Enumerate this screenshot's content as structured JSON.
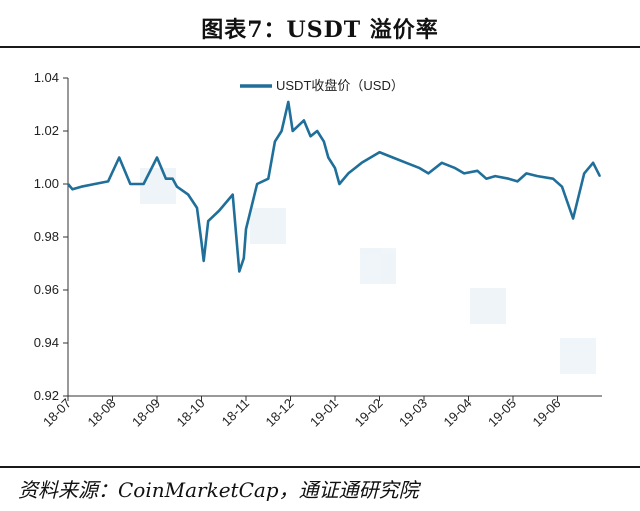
{
  "header": {
    "title": "图表7：USDT 溢价率"
  },
  "footer": {
    "source": "资料来源：CoinMarketCap，通证通研究院"
  },
  "chart_data": {
    "type": "line",
    "title": "图表7：USDT 溢价率",
    "legend_position": "top-center",
    "grid": false,
    "line_color": "#1f6f9a",
    "ylim": [
      0.92,
      1.04
    ],
    "yticks": [
      "1.04",
      "1.02",
      "1.00",
      "0.98",
      "0.96",
      "0.94",
      "0.92"
    ],
    "xticks": [
      "18-07",
      "18-08",
      "18-09",
      "18-10",
      "18-11",
      "18-12",
      "19-01",
      "19-02",
      "19-03",
      "19-04",
      "19-05",
      "19-06"
    ],
    "series": [
      {
        "name": "USDT收盘价（USD）",
        "x": [
          "18-07",
          "18-07",
          "18-07",
          "18-07",
          "18-08",
          "18-08",
          "18-08",
          "18-08",
          "18-08",
          "18-09",
          "18-09",
          "18-09",
          "18-09",
          "18-09",
          "18-10",
          "18-10",
          "18-10",
          "18-10",
          "18-10",
          "18-10",
          "18-10",
          "18-11",
          "18-11",
          "18-11",
          "18-11",
          "18-11",
          "18-11",
          "18-11",
          "18-12",
          "18-12",
          "18-12",
          "18-12",
          "18-12",
          "18-12",
          "19-01",
          "19-01",
          "19-01",
          "19-01",
          "19-01",
          "19-02",
          "19-02",
          "19-02",
          "19-02",
          "19-03",
          "19-03",
          "19-03",
          "19-03",
          "19-04",
          "19-04",
          "19-04",
          "19-04",
          "19-05",
          "19-05",
          "19-05",
          "19-05",
          "19-06",
          "19-06",
          "19-06",
          "19-06",
          "19-06"
        ],
        "x_index": [
          0.0,
          0.1,
          0.3,
          0.6,
          0.9,
          1.15,
          1.4,
          1.7,
          2.0,
          2.2,
          2.35,
          2.45,
          2.7,
          2.9,
          3.0,
          3.05,
          3.15,
          3.4,
          3.7,
          3.85,
          3.95,
          4.0,
          4.25,
          4.5,
          4.65,
          4.8,
          4.95,
          5.05,
          5.3,
          5.45,
          5.6,
          5.75,
          5.85,
          6.0,
          6.1,
          6.3,
          6.45,
          6.6,
          6.8,
          7.0,
          7.3,
          7.6,
          7.9,
          8.1,
          8.4,
          8.7,
          8.9,
          9.2,
          9.4,
          9.6,
          9.9,
          10.1,
          10.3,
          10.55,
          10.9,
          11.1,
          11.35,
          11.6,
          11.8,
          11.95
        ],
        "values": [
          1.0,
          0.998,
          0.999,
          1.0,
          1.001,
          1.01,
          1.0,
          1.0,
          1.01,
          1.002,
          1.002,
          0.999,
          0.996,
          0.991,
          0.978,
          0.971,
          0.986,
          0.99,
          0.996,
          0.967,
          0.972,
          0.983,
          1.0,
          1.002,
          1.016,
          1.02,
          1.031,
          1.02,
          1.024,
          1.018,
          1.02,
          1.016,
          1.01,
          1.006,
          1.0,
          1.004,
          1.006,
          1.008,
          1.01,
          1.012,
          1.01,
          1.008,
          1.006,
          1.004,
          1.008,
          1.006,
          1.004,
          1.005,
          1.002,
          1.003,
          1.002,
          1.001,
          1.004,
          1.003,
          1.002,
          0.999,
          0.987,
          1.004,
          1.008,
          1.003
        ]
      }
    ]
  }
}
